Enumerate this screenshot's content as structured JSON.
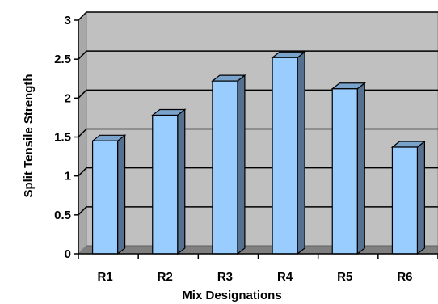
{
  "chart_data": {
    "type": "bar",
    "title": "",
    "xlabel": "Mix Designations",
    "ylabel": "Split Tensile Strength",
    "categories": [
      "R1",
      "R2",
      "R3",
      "R4",
      "R5",
      "R6"
    ],
    "values": [
      1.45,
      1.78,
      2.22,
      2.52,
      2.12,
      1.37
    ],
    "ylim": [
      0,
      3
    ],
    "yticks": [
      "0",
      "0.5",
      "1",
      "1.5",
      "2",
      "2.5",
      "3"
    ],
    "grid": true,
    "legend": "none",
    "style": "3d-column",
    "colors": {
      "bar_front": "#99ccff",
      "bar_side": "#55718f",
      "bar_top": "#7aa3cc",
      "plot_wall": "#c0c0c0",
      "plot_floor": "#808080",
      "gridline": "#000000"
    }
  }
}
